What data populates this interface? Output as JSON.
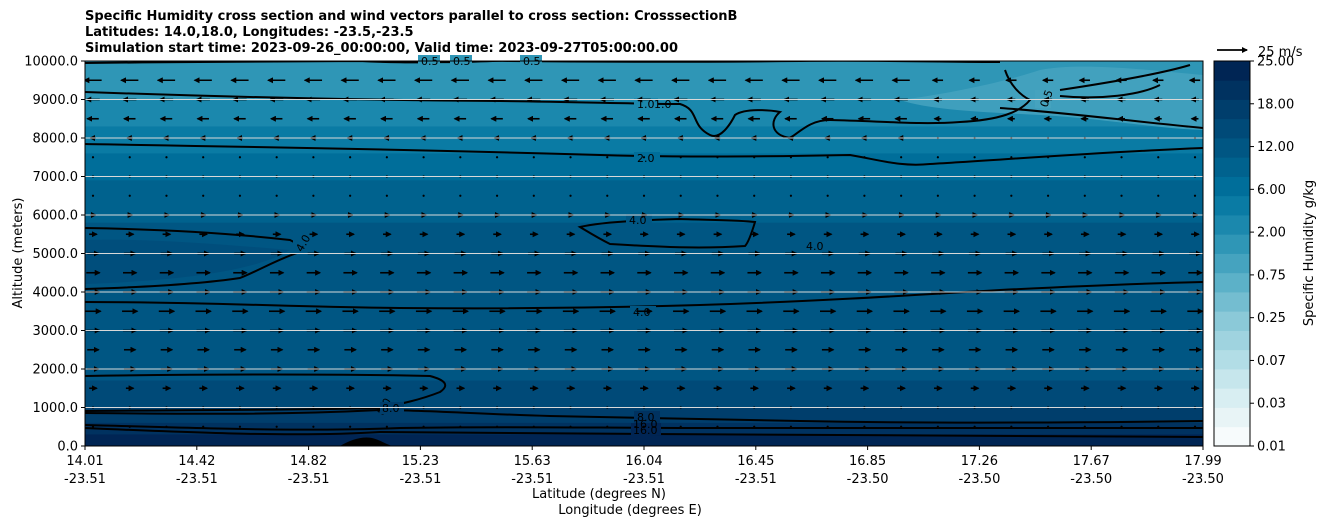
{
  "title_lines": [
    "Specific Humidity cross section and wind vectors parallel to cross section: CrosssectionB",
    "Latitudes: 14.0,18.0, Longitudes: -23.5,-23.5",
    "Simulation start time: 2023-09-26_00:00:00, Valid time: 2023-09-27T05:00:00.00"
  ],
  "chart_data": {
    "type": "heatmap",
    "title": "Specific Humidity cross section and wind vectors parallel to cross section: CrosssectionB",
    "ylabel": "Altitude (meters)",
    "xlabel_lines": [
      "Latitude (degrees N)",
      "Longitude (degrees E)"
    ],
    "ylim": [
      0,
      10000
    ],
    "y_ticks": [
      "0.0",
      "1000.0",
      "2000.0",
      "3000.0",
      "4000.0",
      "5000.0",
      "6000.0",
      "7000.0",
      "8000.0",
      "9000.0",
      "10000.0"
    ],
    "x_ticks": [
      {
        "lat": "14.01",
        "lon": "-23.51"
      },
      {
        "lat": "14.42",
        "lon": "-23.51"
      },
      {
        "lat": "14.82",
        "lon": "-23.51"
      },
      {
        "lat": "15.23",
        "lon": "-23.51"
      },
      {
        "lat": "15.63",
        "lon": "-23.51"
      },
      {
        "lat": "16.04",
        "lon": "-23.51"
      },
      {
        "lat": "16.45",
        "lon": "-23.51"
      },
      {
        "lat": "16.85",
        "lon": "-23.50"
      },
      {
        "lat": "17.26",
        "lon": "-23.50"
      },
      {
        "lat": "17.67",
        "lon": "-23.50"
      },
      {
        "lat": "17.99",
        "lon": "-23.50"
      }
    ],
    "grid": "horizontal",
    "colorbar": {
      "label": "Specific Humidity g/kg",
      "tick_labels": [
        "0.01",
        "0.03",
        "0.07",
        "0.25",
        "0.75",
        "2.00",
        "6.00",
        "12.00",
        "18.00",
        "25.00"
      ],
      "levels": 20,
      "colors": [
        "#f7fbfc",
        "#e8f4f6",
        "#d8eef2",
        "#c6e6ec",
        "#b2dde6",
        "#9fd3df",
        "#8bc9d8",
        "#74bdd0",
        "#5cb1c8",
        "#45a3bf",
        "#2f96b6",
        "#1b88ad",
        "#0a7ba4",
        "#006e9a",
        "#00628e",
        "#005683",
        "#004a78",
        "#003e6c",
        "#003260",
        "#002554"
      ]
    },
    "contour_labels": [
      "0.5",
      "0.5",
      "0.5",
      "1.0",
      "1.0",
      "0.5",
      "2.0",
      "4.0",
      "4.0",
      "4.0",
      "4.0",
      "8.0",
      "8.0",
      "8.0",
      "16.0",
      "16.0"
    ],
    "wind_key": {
      "label": "25 m/s",
      "value": 25
    },
    "wind_rows": [
      {
        "alt": 9500,
        "u": -9
      },
      {
        "alt": 9000,
        "u": -7
      },
      {
        "alt": 8500,
        "u": -6
      },
      {
        "alt": 8000,
        "u": -3
      },
      {
        "alt": 7500,
        "u": -1
      },
      {
        "alt": 7000,
        "u": 1
      },
      {
        "alt": 6500,
        "u": 2
      },
      {
        "alt": 6000,
        "u": 3
      },
      {
        "alt": 5500,
        "u": 4
      },
      {
        "alt": 5000,
        "u": 6
      },
      {
        "alt": 4500,
        "u": 7
      },
      {
        "alt": 4000,
        "u": 7
      },
      {
        "alt": 3500,
        "u": 8
      },
      {
        "alt": 3000,
        "u": 7
      },
      {
        "alt": 2500,
        "u": 6
      },
      {
        "alt": 2000,
        "u": 6
      },
      {
        "alt": 1500,
        "u": 4
      },
      {
        "alt": 1000,
        "u": 2
      },
      {
        "alt": 500,
        "u": 0.5
      }
    ],
    "humidity_bands": [
      {
        "alt": 10000,
        "color": "#2f96b6"
      },
      {
        "alt": 9000,
        "color": "#1b88ad"
      },
      {
        "alt": 8300,
        "color": "#0a7ba4"
      },
      {
        "alt": 7600,
        "color": "#006e9a"
      },
      {
        "alt": 6900,
        "color": "#00628e"
      },
      {
        "alt": 5800,
        "color": "#005683"
      },
      {
        "alt": 3900,
        "color": "#005683"
      },
      {
        "alt": 1700,
        "color": "#004a78"
      },
      {
        "alt": 1000,
        "color": "#003e6c"
      },
      {
        "alt": 600,
        "color": "#003260"
      },
      {
        "alt": 300,
        "color": "#002554"
      }
    ]
  }
}
